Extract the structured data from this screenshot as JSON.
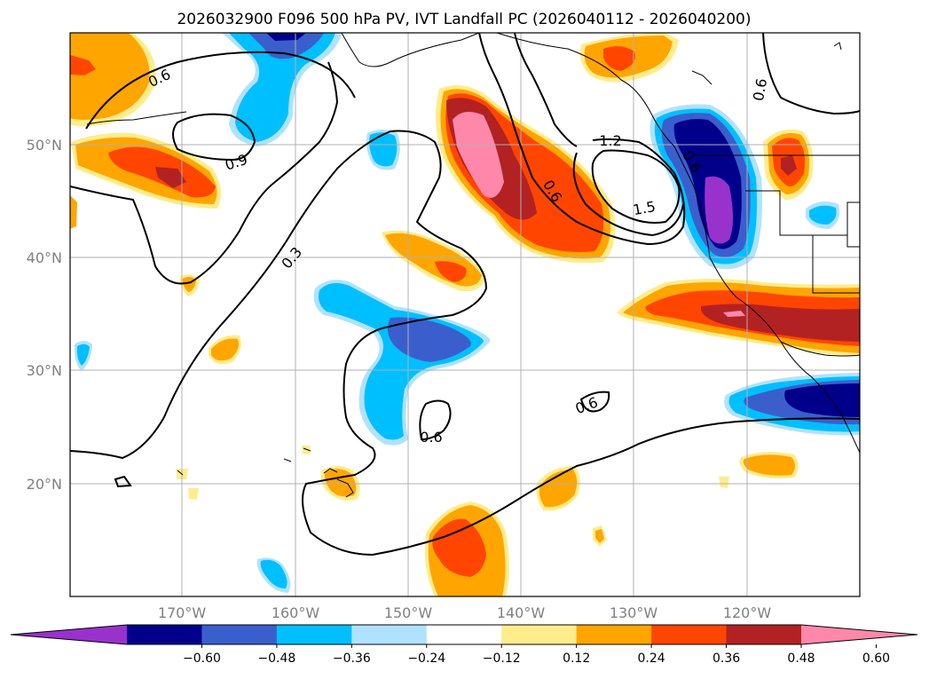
{
  "title": "2026032900 F096 500 hPa PV, IVT Landfall PC (2026040112 - 2026040200)",
  "lat_labels": [
    "50°N",
    "40°N",
    "30°N",
    "20°N"
  ],
  "lon_labels": [
    "170°W",
    "160°W",
    "150°W",
    "140°W",
    "130°W",
    "120°W"
  ],
  "colorbar": {
    "colors": [
      "#9932cc",
      "#00008b",
      "#3a5fcd",
      "#00bfff",
      "#b0e2ff",
      "#ffffff",
      "#ffec8b",
      "#ffa500",
      "#ff4500",
      "#b22222",
      "#ff88aa"
    ],
    "tick_labels": [
      "−0.60",
      "−0.48",
      "−0.36",
      "−0.24",
      "−0.12",
      "0.12",
      "0.24",
      "0.36",
      "0.48",
      "0.60"
    ]
  },
  "contour_labels": [
    "0.6",
    "0.9",
    "0.3",
    "1.2",
    "0.6",
    "1.5",
    "0.6",
    "0.6",
    "0.6",
    "0.6"
  ],
  "icons": {
    "map": "map-panel",
    "grid": "graticule"
  }
}
